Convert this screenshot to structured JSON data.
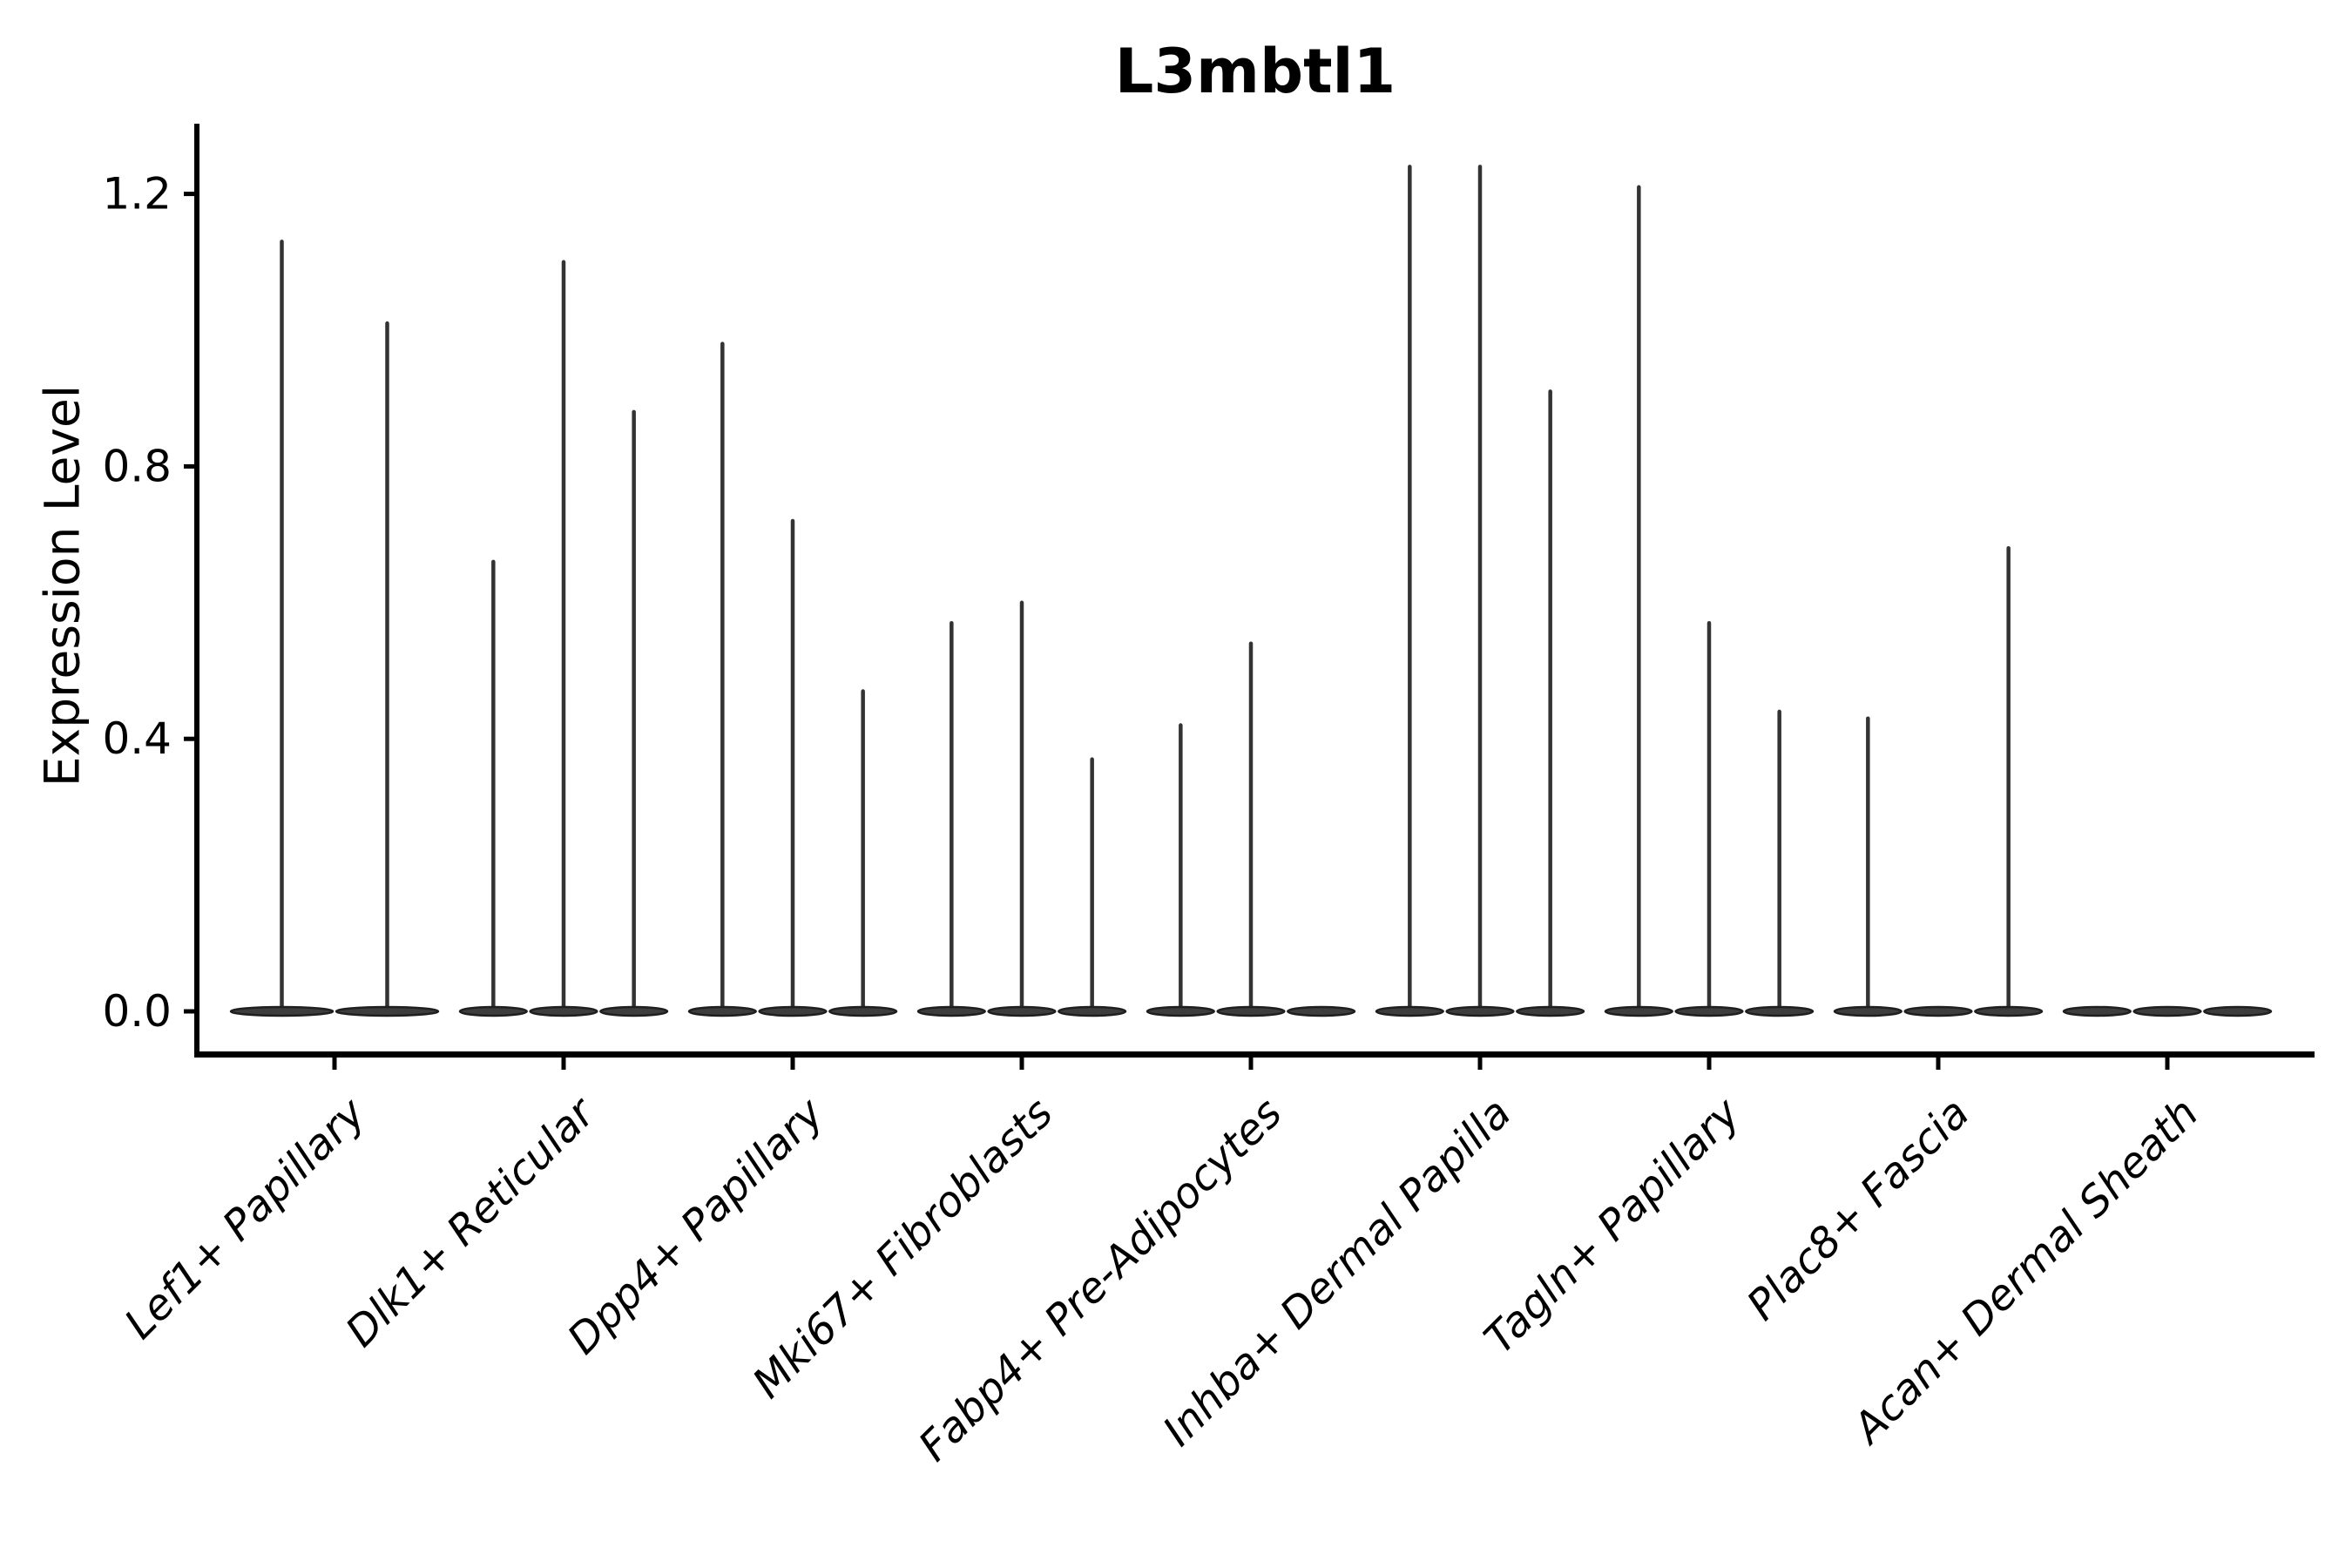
{
  "chart_data": {
    "type": "violin",
    "title": "L3mbtl1",
    "xlabel": "",
    "ylabel": "Expression Level",
    "y_ticks": [
      0.0,
      0.4,
      0.8,
      1.2
    ],
    "y_tick_labels": [
      "0.0",
      "0.4",
      "0.8",
      "1.2"
    ],
    "ylim": [
      -0.07,
      1.3
    ],
    "grid": false,
    "legend": "none",
    "x_tick_rotation_deg": 45,
    "categories": [
      "Lef1+ Papillary",
      "Dlk1+ Reticular",
      "Dpp4+ Papillary",
      "Mki67+ Fibroblasts",
      "Fabp4+ Pre-Adipocytes",
      "Inhba+ Dermal Papilla",
      "Tagln+ Papillary",
      "Plac8+ Fascia",
      "Acan+ Dermal Sheath"
    ],
    "violin_spike_maxima": [
      [
        1.13,
        1.01
      ],
      [
        0.66,
        1.1,
        0.88
      ],
      [
        0.98,
        0.72,
        0.47
      ],
      [
        0.57,
        0.6,
        0.37
      ],
      [
        0.42,
        0.54,
        null
      ],
      [
        1.24,
        1.24,
        0.91
      ],
      [
        1.21,
        0.57,
        0.44
      ],
      [
        0.43,
        null,
        0.68
      ],
      [
        null,
        null,
        null
      ]
    ],
    "baseline_value": 0.0,
    "colors": {
      "background": "#ffffff",
      "text": "#000000",
      "axis": "#000000",
      "violin_fill": "#3d3d3d",
      "violin_edge": "#1f1f1f",
      "spike": "#333333"
    }
  }
}
